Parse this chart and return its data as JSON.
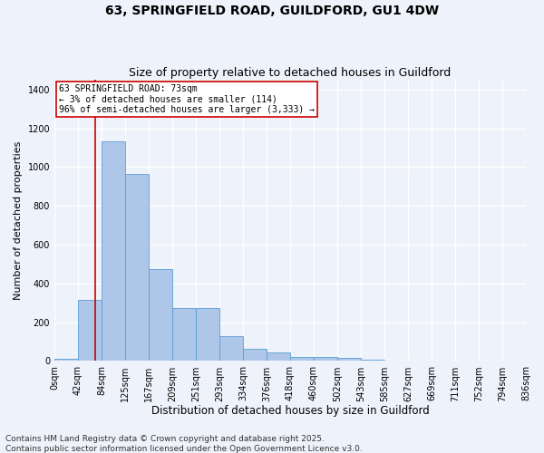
{
  "title": "63, SPRINGFIELD ROAD, GUILDFORD, GU1 4DW",
  "subtitle": "Size of property relative to detached houses in Guildford",
  "xlabel": "Distribution of detached houses by size in Guildford",
  "ylabel": "Number of detached properties",
  "bin_labels": [
    "0sqm",
    "42sqm",
    "84sqm",
    "125sqm",
    "167sqm",
    "209sqm",
    "251sqm",
    "293sqm",
    "334sqm",
    "376sqm",
    "418sqm",
    "460sqm",
    "502sqm",
    "543sqm",
    "585sqm",
    "627sqm",
    "669sqm",
    "711sqm",
    "752sqm",
    "794sqm",
    "836sqm"
  ],
  "bar_values": [
    10,
    315,
    1135,
    965,
    475,
    275,
    275,
    130,
    62,
    45,
    22,
    22,
    18,
    8,
    3,
    2,
    1,
    0,
    0,
    0
  ],
  "bar_color": "#aec6e8",
  "bar_edge_color": "#5a9fd4",
  "property_line_x": 73,
  "property_line_label": "63 SPRINGFIELD ROAD: 73sqm",
  "annotation_line1": "← 3% of detached houses are smaller (114)",
  "annotation_line2": "96% of semi-detached houses are larger (3,333) →",
  "annotation_box_color": "#ffffff",
  "annotation_box_edge": "#cc0000",
  "vline_color": "#cc0000",
  "ylim": [
    0,
    1450
  ],
  "footer1": "Contains HM Land Registry data © Crown copyright and database right 2025.",
  "footer2": "Contains public sector information licensed under the Open Government Licence v3.0.",
  "bg_color": "#eef2fa",
  "plot_bg_color": "#eef2fa",
  "grid_color": "#ffffff",
  "title_fontsize": 10,
  "subtitle_fontsize": 9,
  "xlabel_fontsize": 8.5,
  "ylabel_fontsize": 8,
  "tick_fontsize": 7,
  "footer_fontsize": 6.5
}
